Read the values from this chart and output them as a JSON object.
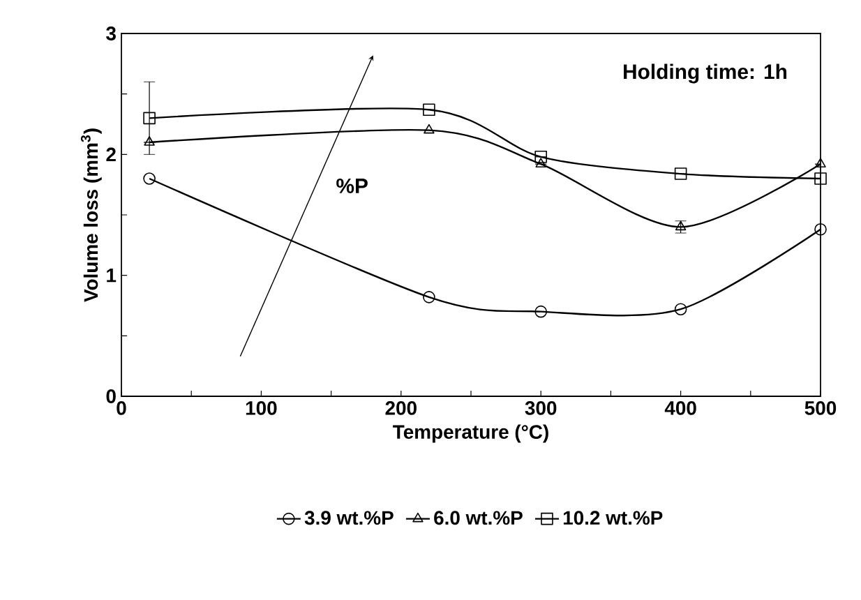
{
  "chart_data": {
    "type": "line",
    "xlabel": "Temperature (°C)",
    "ylabel": "Volume loss (mm$^{3}$)",
    "x": [
      20,
      220,
      300,
      400,
      500
    ],
    "series": [
      {
        "name": "3.9 wt.%P",
        "color": "#000000",
        "marker": "circle",
        "values": [
          1.8,
          0.82,
          0.7,
          0.72,
          1.38
        ]
      },
      {
        "name": "6.0 wt.%P",
        "color": "#000000",
        "marker": "triangle",
        "values": [
          2.1,
          2.2,
          1.92,
          1.4,
          1.92
        ],
        "errors": [
          null,
          null,
          null,
          0.05,
          null
        ]
      },
      {
        "name": "10.2 wt.%P",
        "color": "#000000",
        "marker": "square",
        "values": [
          2.3,
          2.37,
          1.98,
          1.84,
          1.8
        ],
        "errors": [
          [
            2.0,
            2.6
          ],
          null,
          null,
          null,
          null
        ]
      }
    ],
    "xlim": [
      0,
      500
    ],
    "ylim": [
      0,
      3
    ],
    "xticks": [
      0,
      {
        "value": 50,
        "label": null
      },
      100,
      {
        "value": 150,
        "label": null
      },
      200,
      {
        "value": 250,
        "label": null
      },
      300,
      {
        "value": 350,
        "label": null
      },
      400,
      {
        "value": 450,
        "label": null
      },
      500
    ],
    "yticks": [
      0,
      {
        "value": 0.5,
        "label": null
      },
      1,
      {
        "value": 1.5,
        "label": null
      },
      2,
      {
        "value": 2.5,
        "label": null
      },
      3
    ],
    "annotations": [
      "Holding time: 1h",
      "%P"
    ],
    "legend": "bottom",
    "grid": false
  }
}
